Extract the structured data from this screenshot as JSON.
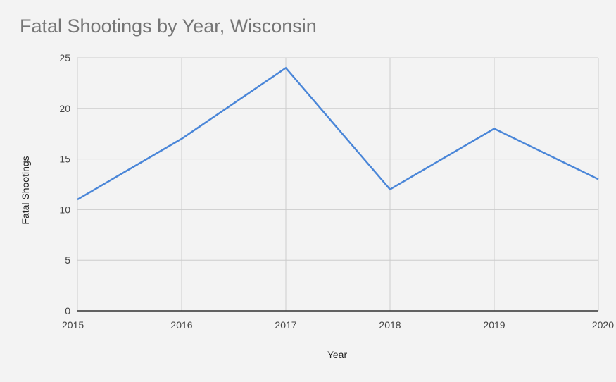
{
  "chart_data": {
    "type": "line",
    "title": "Fatal Shootings by Year, Wisconsin",
    "xlabel": "Year",
    "ylabel": "Fatal Shootings",
    "x": [
      "2015",
      "2016",
      "2017",
      "2018",
      "2019",
      "2020"
    ],
    "series": [
      {
        "values": [
          11,
          17,
          24,
          12,
          18,
          13
        ]
      }
    ],
    "ylim": [
      0,
      25
    ],
    "yticks": [
      0,
      5,
      10,
      15,
      20,
      25
    ],
    "grid": true,
    "legend": "none"
  },
  "colors": {
    "line": "#4a86d8",
    "grid": "#cccccc",
    "baseline": "#333333",
    "background": "#f3f3f3",
    "title": "#757575"
  }
}
